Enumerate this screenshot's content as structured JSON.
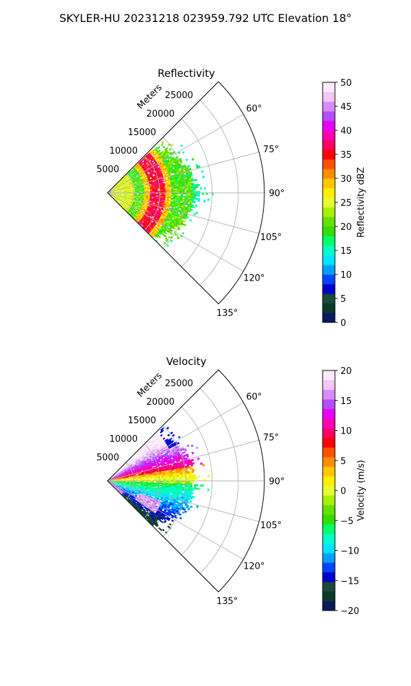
{
  "figure_title": "SKYLER-HU  20231218  023959.792 UTC Elevation 18°",
  "chart_data": [
    {
      "type": "heatmap",
      "projection": "polar-sector",
      "title": "Reflectivity",
      "range_axis_label": "Meters",
      "range_ticks": [
        "5000",
        "10000",
        "15000",
        "20000",
        "25000"
      ],
      "range_max": 30000,
      "azimuth_range_deg": [
        45,
        135
      ],
      "azimuth_ticks": [
        "60°",
        "75°",
        "90°",
        "105°",
        "120°",
        "135°"
      ],
      "grid": true,
      "colorbar": {
        "label": "Reflectivity dBZ",
        "min": 0,
        "max": 50,
        "ticks": [
          "0",
          "5",
          "10",
          "15",
          "20",
          "25",
          "30",
          "35",
          "40",
          "45",
          "50"
        ]
      },
      "colors": [
        "#0a1a5c",
        "#0b3a2a",
        "#1a4a3a",
        "#0000cc",
        "#0044ff",
        "#00a0ff",
        "#00e5ff",
        "#00ffcc",
        "#00ff66",
        "#33dd00",
        "#66e000",
        "#a6f000",
        "#e6ff30",
        "#ffee00",
        "#ffc800",
        "#ff8c00",
        "#ff5000",
        "#ff0000",
        "#ff0066",
        "#ff00b4",
        "#e600ff",
        "#b34dff",
        "#d98cff",
        "#f2c6f7",
        "#fdeaff"
      ]
    },
    {
      "type": "heatmap",
      "projection": "polar-sector",
      "title": "Velocity",
      "range_axis_label": "Meters",
      "range_ticks": [
        "5000",
        "10000",
        "15000",
        "20000",
        "25000"
      ],
      "range_max": 30000,
      "azimuth_range_deg": [
        45,
        135
      ],
      "azimuth_ticks": [
        "60°",
        "75°",
        "90°",
        "105°",
        "120°",
        "135°"
      ],
      "grid": true,
      "colorbar": {
        "label": "Velocity (m/s)",
        "min": -20,
        "max": 20,
        "ticks": [
          "−20",
          "−15",
          "−10",
          "−5",
          "0",
          "5",
          "10",
          "15",
          "20"
        ]
      },
      "colors": [
        "#0a1a5c",
        "#0b3a2a",
        "#1a4a3a",
        "#0000cc",
        "#0044ff",
        "#00a0ff",
        "#00e5ff",
        "#00ffcc",
        "#00ff66",
        "#33dd00",
        "#66e000",
        "#a6f000",
        "#e6ff30",
        "#ffee00",
        "#ffc800",
        "#ff8c00",
        "#ff5000",
        "#ff0000",
        "#ff0066",
        "#ff00b4",
        "#e600ff",
        "#b34dff",
        "#d98cff",
        "#f2c6f7",
        "#fdeaff"
      ]
    }
  ]
}
